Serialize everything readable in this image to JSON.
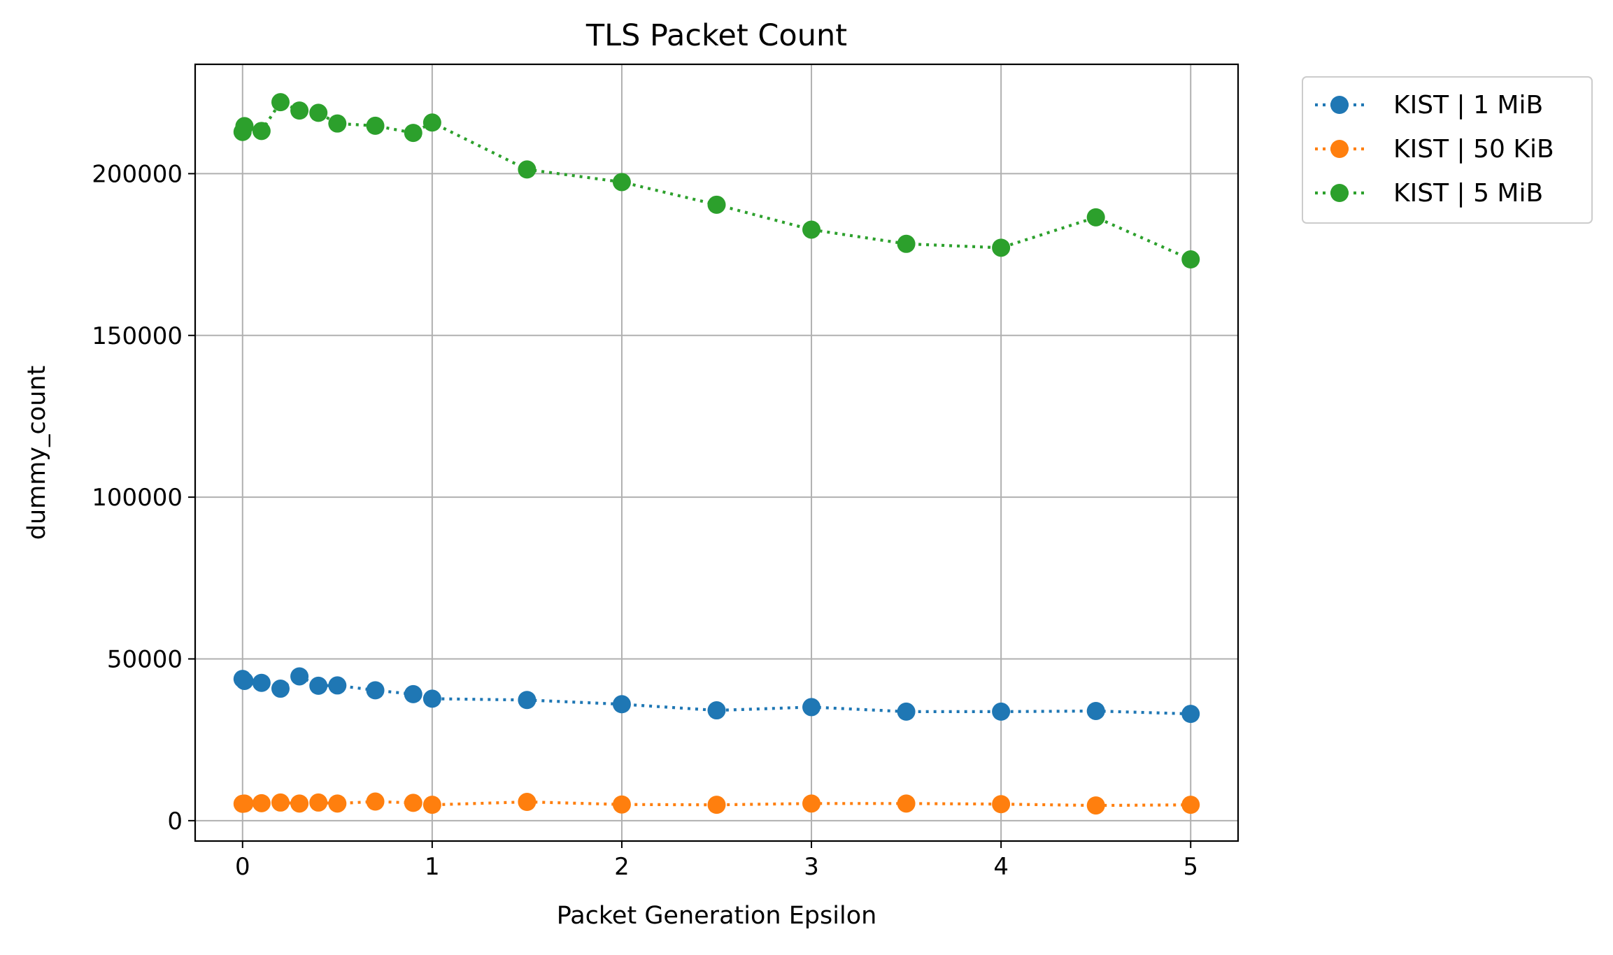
{
  "chart_data": {
    "type": "line",
    "title": "TLS Packet Count",
    "xlabel": "Packet Generation Epsilon",
    "ylabel": "dummy_count",
    "xlim": [
      -0.25,
      5.25
    ],
    "ylim": [
      -6300,
      233800
    ],
    "xticks": [
      0,
      1,
      2,
      3,
      4,
      5
    ],
    "xtick_labels": [
      "0",
      "1",
      "2",
      "3",
      "4",
      "5"
    ],
    "yticks": [
      0,
      50000,
      100000,
      150000,
      200000
    ],
    "ytick_labels": [
      "0",
      "50000",
      "100000",
      "150000",
      "200000"
    ],
    "grid": true,
    "legend_position": "outside top-right",
    "x": [
      0.0,
      0.01,
      0.1,
      0.2,
      0.3,
      0.4,
      0.5,
      0.7,
      0.9,
      1.0,
      1.5,
      2.0,
      2.5,
      3.0,
      3.5,
      4.0,
      4.5,
      5.0
    ],
    "series": [
      {
        "name": "KIST | 1 MiB",
        "color": "#1f77b4",
        "values": [
          43800,
          43200,
          42600,
          40800,
          44600,
          41700,
          41800,
          40300,
          39100,
          37700,
          37300,
          36000,
          34100,
          35100,
          33700,
          33700,
          33900,
          33000
        ]
      },
      {
        "name": "KIST | 50 KiB",
        "color": "#ff7f0e",
        "values": [
          5200,
          5300,
          5400,
          5600,
          5300,
          5600,
          5300,
          5900,
          5500,
          4900,
          5800,
          5000,
          4900,
          5300,
          5300,
          5100,
          4700,
          4900
        ]
      },
      {
        "name": "KIST | 5 MiB",
        "color": "#2ca02c",
        "values": [
          212900,
          214700,
          213200,
          222100,
          219500,
          218800,
          215500,
          214800,
          212600,
          215800,
          201300,
          197400,
          190400,
          182700,
          178300,
          177100,
          186500,
          173500
        ]
      }
    ]
  }
}
